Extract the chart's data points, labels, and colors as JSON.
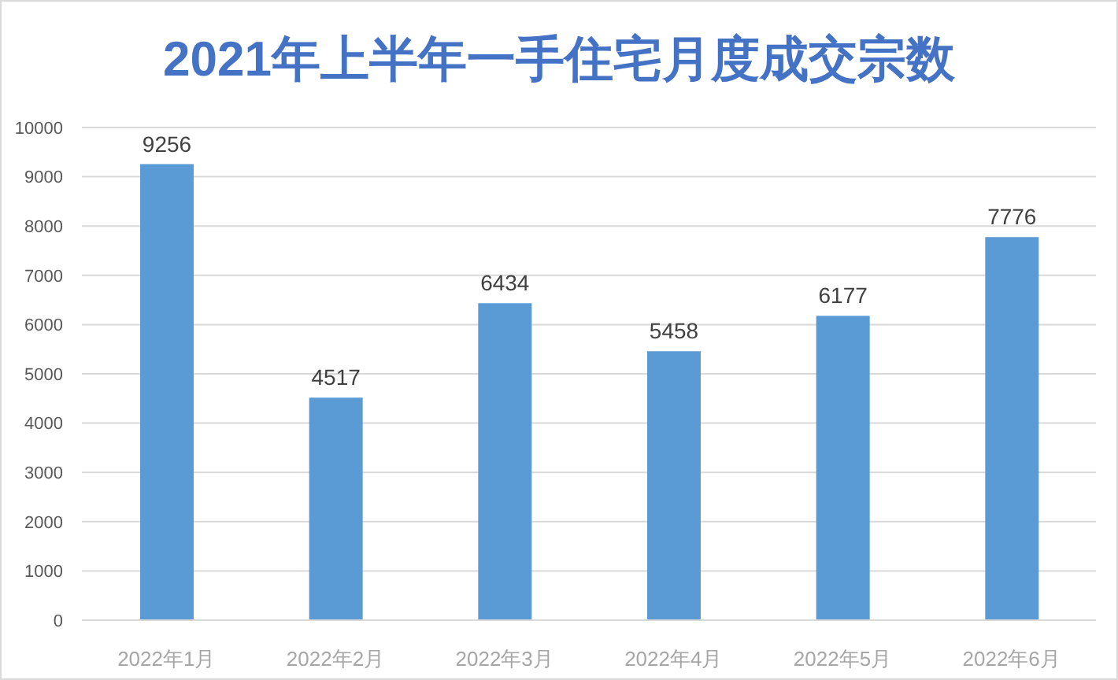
{
  "chart_data": {
    "type": "bar",
    "title": "2021年上半年一手住宅月度成交宗数",
    "categories": [
      "2022年1月",
      "2022年2月",
      "2022年3月",
      "2022年4月",
      "2022年5月",
      "2022年6月"
    ],
    "values": [
      9256,
      4517,
      6434,
      5458,
      6177,
      7776
    ],
    "color": "#5b9bd5",
    "ylim": [
      0,
      10000
    ],
    "yticks": [
      0,
      1000,
      2000,
      3000,
      4000,
      5000,
      6000,
      7000,
      8000,
      9000,
      10000
    ],
    "grid": "y",
    "data_labels": true
  }
}
